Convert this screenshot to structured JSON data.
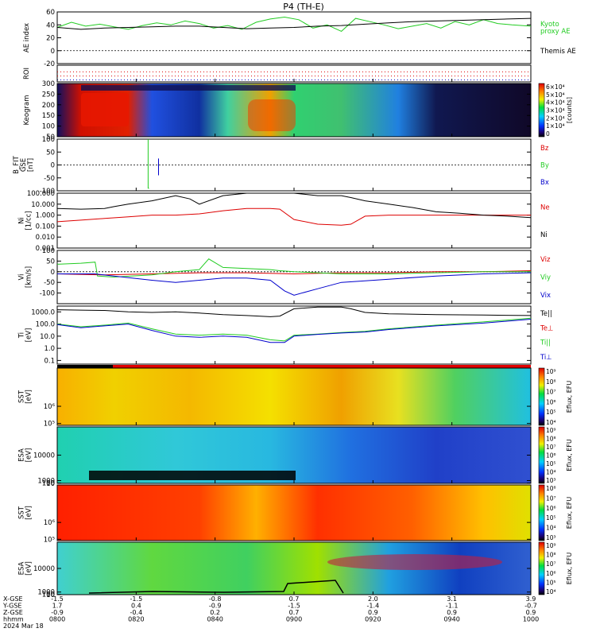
{
  "chart_data": {
    "type": "multi-panel",
    "title": "P4  (TH-E)",
    "panels": [
      {
        "id": "ae",
        "kind": "line",
        "ylabel": "AE index",
        "ylim": [
          -20,
          60
        ],
        "yticks": [
          "60",
          "40",
          "20",
          "0",
          "-20"
        ],
        "series": [
          {
            "name": "Kyoto\nproxy AE",
            "color": "#22cc22",
            "x": [
              0,
              3,
              6,
              9,
              12,
              15,
              18,
              21,
              24,
              27,
              30,
              33,
              36,
              39,
              42,
              45,
              48,
              51,
              54,
              57,
              60,
              63,
              66,
              69,
              72,
              75,
              78,
              81,
              84,
              87,
              90,
              93,
              96,
              100
            ],
            "y": [
              36,
              44,
              38,
              41,
              37,
              33,
              39,
              43,
              40,
              46,
              42,
              35,
              39,
              33,
              44,
              49,
              52,
              48,
              35,
              40,
              30,
              50,
              45,
              40,
              34,
              38,
              42,
              35,
              45,
              40,
              48,
              42,
              40,
              38
            ]
          },
          {
            "name": "Themis AE",
            "color": "#000000",
            "x": [
              0,
              5,
              10,
              15,
              20,
              25,
              30,
              35,
              40,
              45,
              50,
              55,
              60,
              65,
              70,
              75,
              80,
              85,
              90,
              95,
              100
            ],
            "y": [
              36,
              33,
              35,
              36,
              37,
              38,
              38,
              36,
              34,
              35,
              36,
              38,
              39,
              41,
              43,
              45,
              46,
              47,
              48,
              49,
              50
            ]
          }
        ]
      },
      {
        "id": "roi",
        "kind": "flags",
        "ylabel": "ROI",
        "yticks": []
      },
      {
        "id": "keogram",
        "kind": "spectrogram",
        "ylabel": "Keogram",
        "ylim": [
          50,
          300
        ],
        "yticks": [
          "300",
          "250",
          "200",
          "150",
          "100",
          "50"
        ],
        "colorbar": {
          "label": "[counts]",
          "ticks": [
            "6×10⁴",
            "5×10⁴",
            "4×10⁴",
            "3×10⁴",
            "2×10⁴",
            "1×10⁴",
            "0"
          ]
        }
      },
      {
        "id": "bfield",
        "kind": "line",
        "ylabel": "B_FIT\nGSE\n[nT]",
        "ylim": [
          -100,
          100
        ],
        "yticks": [
          "100",
          "50",
          "0",
          "-50",
          "-100"
        ],
        "series": [
          {
            "name": "Bz",
            "color": "#dd0000",
            "x": [],
            "y": []
          },
          {
            "name": "By",
            "color": "#22cc22",
            "x": [
              19.2,
              19.2,
              19.4
            ],
            "y": [
              100,
              -90,
              -90
            ]
          },
          {
            "name": "Bx",
            "color": "#0000cc",
            "x": [
              21.4,
              21.4
            ],
            "y": [
              25,
              -40
            ]
          }
        ]
      },
      {
        "id": "density",
        "kind": "line",
        "log": true,
        "ylabel": "Ni\n[1/cc]",
        "ylim": [
          0.001,
          100
        ],
        "yticks": [
          "100.000",
          "10.000",
          "1.000",
          "0.100",
          "0.010",
          "0.001"
        ],
        "series": [
          {
            "name": "Ne",
            "color": "#dd0000",
            "x": [
              0,
              5,
              10,
              15,
              20,
              25,
              30,
              35,
              40,
              45,
              47,
              50,
              55,
              60,
              62,
              65,
              70,
              75,
              80,
              85,
              90,
              95,
              100
            ],
            "y": [
              0.25,
              0.35,
              0.5,
              0.7,
              1.0,
              1.0,
              1.3,
              2.5,
              4,
              4,
              3.5,
              0.4,
              0.15,
              0.12,
              0.15,
              0.8,
              1,
              1,
              1,
              1,
              1,
              1,
              1
            ]
          },
          {
            "name": "Ni",
            "color": "#000000",
            "x": [
              0,
              5,
              10,
              12,
              15,
              20,
              25,
              28,
              30,
              35,
              40,
              45,
              50,
              55,
              60,
              62,
              65,
              70,
              75,
              80,
              85,
              90,
              95,
              100
            ],
            "y": [
              4,
              3.5,
              4,
              6,
              10,
              20,
              60,
              30,
              10,
              60,
              100,
              100,
              100,
              60,
              60,
              40,
              20,
              10,
              5,
              2,
              1.5,
              1,
              0.8,
              0.6
            ]
          }
        ]
      },
      {
        "id": "velocity",
        "kind": "line",
        "ylabel": "Vi\n[km/s]",
        "ylim": [
          -150,
          100
        ],
        "yticks": [
          "100",
          "50",
          "0",
          "-50",
          "-100"
        ],
        "series": [
          {
            "name": "Viz",
            "color": "#dd0000",
            "x": [
              0,
              10,
              20,
              30,
              40,
              50,
              60,
              70,
              80,
              90,
              100
            ],
            "y": [
              -10,
              -15,
              -10,
              -5,
              -5,
              -10,
              -5,
              -5,
              0,
              0,
              5
            ]
          },
          {
            "name": "Viy",
            "color": "#22cc22",
            "x": [
              0,
              5,
              8,
              8.5,
              12,
              20,
              25,
              30,
              32,
              35,
              40,
              45,
              47,
              50,
              55,
              60,
              70,
              80,
              90,
              100
            ],
            "y": [
              35,
              40,
              45,
              -20,
              -25,
              -15,
              0,
              10,
              60,
              20,
              15,
              10,
              5,
              0,
              -5,
              -10,
              -10,
              -5,
              0,
              0
            ]
          },
          {
            "name": "Vix",
            "color": "#0000cc",
            "x": [
              0,
              8,
              12,
              20,
              25,
              30,
              35,
              40,
              45,
              48,
              50,
              55,
              60,
              70,
              80,
              90,
              100
            ],
            "y": [
              -10,
              -10,
              -20,
              -40,
              -50,
              -40,
              -30,
              -30,
              -40,
              -90,
              -110,
              -80,
              -50,
              -35,
              -20,
              -10,
              -5
            ]
          }
        ]
      },
      {
        "id": "temperature",
        "kind": "line",
        "log": true,
        "ylabel": "Ti\n[eV]",
        "ylim": [
          0.05,
          3000
        ],
        "yticks": [
          "1000.0",
          "100.0",
          "10.0",
          "1.0",
          "0.1"
        ],
        "series": [
          {
            "name": "Te||",
            "color": "#000000",
            "x": [
              0,
              5,
              10,
              15,
              20,
              25,
              30,
              35,
              40,
              45,
              47,
              50,
              55,
              60,
              62,
              65,
              70,
              80,
              90,
              100
            ],
            "y": [
              1500,
              1400,
              1300,
              1000,
              900,
              1000,
              800,
              600,
              500,
              400,
              450,
              1800,
              2500,
              2500,
              1800,
              900,
              700,
              600,
              550,
              500
            ]
          },
          {
            "name": "Te⊥",
            "color": "#dd0000",
            "x": [],
            "y": []
          },
          {
            "name": "Ti||",
            "color": "#22cc22",
            "x": [
              0,
              5,
              10,
              15,
              20,
              25,
              30,
              35,
              40,
              45,
              48,
              50,
              55,
              60,
              65,
              70,
              80,
              90,
              100
            ],
            "y": [
              100,
              60,
              80,
              120,
              40,
              15,
              12,
              15,
              12,
              5,
              4,
              12,
              15,
              20,
              25,
              40,
              80,
              150,
              300
            ]
          },
          {
            "name": "Ti⊥",
            "color": "#0000cc",
            "x": [
              0,
              5,
              10,
              15,
              20,
              25,
              30,
              35,
              40,
              45,
              48,
              50,
              55,
              60,
              65,
              70,
              80,
              90,
              100
            ],
            "y": [
              90,
              50,
              70,
              100,
              30,
              10,
              8,
              10,
              8,
              3,
              3,
              10,
              14,
              18,
              22,
              35,
              70,
              120,
              250
            ]
          }
        ]
      },
      {
        "id": "sst_e",
        "kind": "spectrogram",
        "ylabel": "SST\n[eV]",
        "ylim": [
          3000,
          3000000
        ],
        "yticks": [
          "10⁶",
          "10⁵"
        ],
        "colorbar": {
          "label": "Eflux, EFU",
          "ticks": [
            "10⁹",
            "10⁸",
            "10⁷",
            "10⁶",
            "10⁵",
            "10⁴"
          ]
        }
      },
      {
        "id": "esa_e",
        "kind": "spectrogram",
        "ylabel": "ESA\n[eV]",
        "ylim": [
          8,
          20000
        ],
        "yticks": [
          "10000",
          "1000",
          "100",
          "10"
        ],
        "colorbar": {
          "label": "Eflux, EFU",
          "ticks": [
            "10⁹",
            "10⁸",
            "10⁷",
            "10⁶",
            "10⁵",
            "10⁴",
            "10³"
          ]
        }
      },
      {
        "id": "sst_i",
        "kind": "spectrogram",
        "ylabel": "SST\n[eV]",
        "ylim": [
          30000,
          3000000
        ],
        "yticks": [
          "10⁶",
          "10⁵"
        ],
        "colorbar": {
          "label": "Eflux, EFU",
          "ticks": [
            "10⁸",
            "10⁷",
            "10⁶",
            "10⁵",
            "10⁴",
            "10³"
          ]
        }
      },
      {
        "id": "esa_i",
        "kind": "spectrogram",
        "ylabel": "ESA\n[eV]",
        "ylim": [
          8,
          20000
        ],
        "yticks": [
          "10000",
          "1000",
          "100",
          "10"
        ],
        "colorbar": {
          "label": "Eflux, EFU",
          "ticks": [
            "10⁹",
            "10⁸",
            "10⁷",
            "10⁶",
            "10⁵",
            "10⁴"
          ]
        }
      }
    ],
    "x_axis": {
      "row_labels": [
        "X-GSE",
        "Y-GSE",
        "Z-GSE",
        "hhmm",
        "2024 Mar 18"
      ],
      "ticks": [
        {
          "x": 0.0,
          "labels": [
            "-1.5",
            "1.7",
            "-0.9",
            "0800"
          ]
        },
        {
          "x": 16.67,
          "labels": [
            "-1.5",
            "0.4",
            "-0.4",
            "0820"
          ]
        },
        {
          "x": 33.33,
          "labels": [
            "-0.8",
            "-0.9",
            "0.2",
            "0840"
          ]
        },
        {
          "x": 50.0,
          "labels": [
            "0.7",
            "-1.5",
            "0.7",
            "0900"
          ]
        },
        {
          "x": 66.67,
          "labels": [
            "2.0",
            "-1.4",
            "0.9",
            "0920"
          ]
        },
        {
          "x": 83.33,
          "labels": [
            "3.1",
            "-1.1",
            "0.9",
            "0940"
          ]
        },
        {
          "x": 100.0,
          "labels": [
            "3.9",
            "-0.7",
            "0.9",
            "1000"
          ]
        }
      ]
    }
  }
}
